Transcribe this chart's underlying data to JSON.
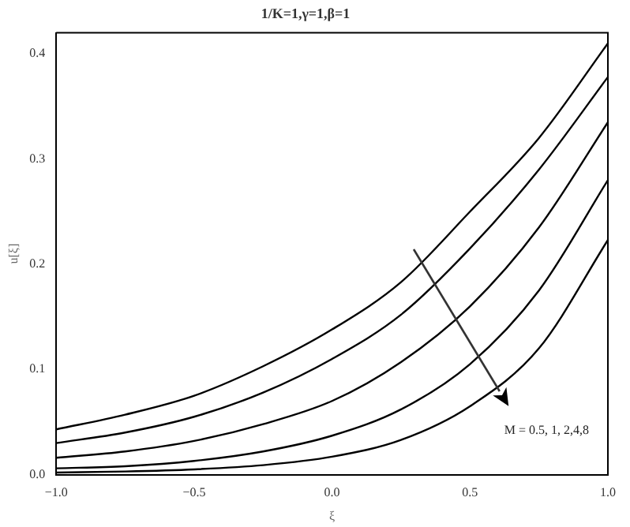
{
  "chart_data": {
    "type": "line",
    "title": "1/K=1,γ=1,β=1",
    "xlabel": "ξ",
    "ylabel": "u[ξ]",
    "x": [
      -1,
      -0.75,
      -0.5,
      -0.25,
      0,
      0.25,
      0.5,
      0.75,
      1
    ],
    "series": [
      {
        "color": "#000000",
        "values": [
          0.043,
          0.057,
          0.075,
          0.103,
          0.138,
          0.183,
          0.25,
          0.32,
          0.41
        ]
      },
      {
        "color": "#000000",
        "values": [
          0.03,
          0.04,
          0.055,
          0.078,
          0.11,
          0.152,
          0.215,
          0.29,
          0.378
        ]
      },
      {
        "color": "#000000",
        "values": [
          0.016,
          0.022,
          0.032,
          0.048,
          0.07,
          0.107,
          0.16,
          0.235,
          0.335
        ]
      },
      {
        "color": "#000000",
        "values": [
          0.006,
          0.008,
          0.013,
          0.022,
          0.037,
          0.062,
          0.105,
          0.175,
          0.28
        ]
      },
      {
        "color": "#000000",
        "values": [
          0.002,
          0.003,
          0.005,
          0.009,
          0.017,
          0.033,
          0.065,
          0.12,
          0.223
        ]
      }
    ],
    "xlim": [
      -1,
      1
    ],
    "xticks": [
      {
        "value": -1,
        "label": "−1.0"
      },
      {
        "value": -0.5,
        "label": "−0.5"
      },
      {
        "value": 0,
        "label": "0.0"
      },
      0.5,
      {
        "value": 1,
        "label": "1.0"
      }
    ],
    "ylim": [
      0,
      0.42
    ],
    "yticks": [
      {
        "value": 0,
        "label": "0.0"
      },
      0.1,
      0.2,
      0.3,
      0.4
    ],
    "annotations": [
      "M = 0.5, 1, 2,4,8"
    ],
    "grid": false,
    "legend": false,
    "marker": "none",
    "line_style": "solid"
  }
}
